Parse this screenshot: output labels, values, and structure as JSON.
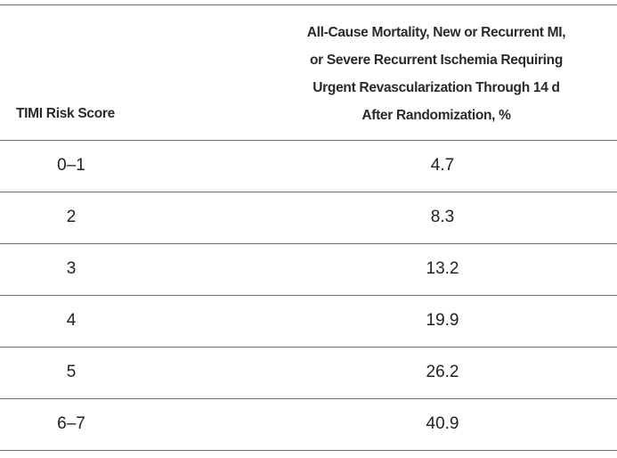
{
  "table": {
    "columns": [
      "TIMI Risk Score",
      [
        "All-Cause Mortality, New or Recurrent MI,",
        "or Severe Recurrent Ischemia Requiring",
        "Urgent Revascularization Through 14 d",
        "After Randomization, %"
      ]
    ],
    "rows": [
      [
        "0–1",
        4.7
      ],
      [
        "2",
        8.3
      ],
      [
        "3",
        13.2
      ],
      [
        "4",
        19.9
      ],
      [
        "5",
        26.2
      ],
      [
        "6–7",
        40.9
      ]
    ]
  }
}
